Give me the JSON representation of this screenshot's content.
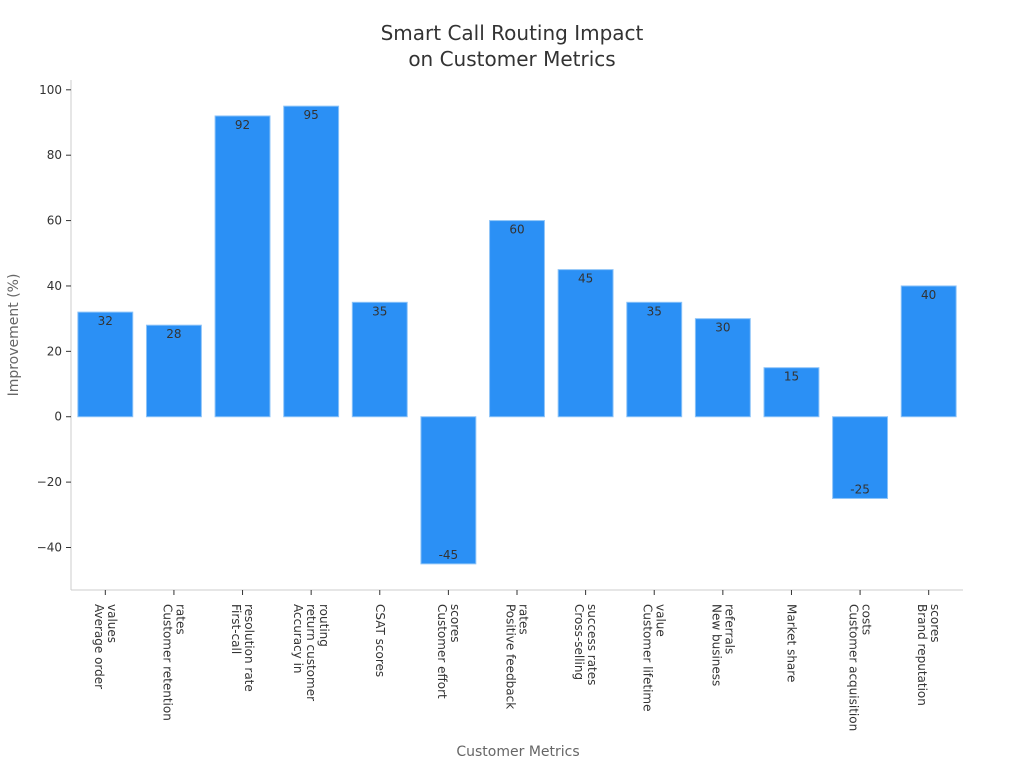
{
  "chart_data": {
    "type": "bar",
    "title": [
      "Smart Call Routing Impact",
      "on Customer Metrics"
    ],
    "xlabel": "Customer Metrics",
    "ylabel": "Improvement (%)",
    "ylim": [
      -53,
      103
    ],
    "yticks": [
      -40,
      -20,
      0,
      20,
      40,
      60,
      80,
      100
    ],
    "ytick_labels": [
      "−40",
      "−20",
      "0",
      "20",
      "40",
      "60",
      "80",
      "100"
    ],
    "grid": false,
    "bar_color": "#2b90f5",
    "bar_edge_color": "#8cc3f8",
    "categories": [
      [
        "Average order",
        "values"
      ],
      [
        "Customer retention",
        "rates"
      ],
      [
        "First-call",
        "resolution rate"
      ],
      [
        "Accuracy in",
        "return customer",
        "routing"
      ],
      [
        "CSAT scores"
      ],
      [
        "Customer effort",
        "scores"
      ],
      [
        "Positive feedback",
        "rates"
      ],
      [
        "Cross-selling",
        "success rates"
      ],
      [
        "Customer lifetime",
        "value"
      ],
      [
        "New business",
        "referrals"
      ],
      [
        "Market share"
      ],
      [
        "Customer acquisition",
        "costs"
      ],
      [
        "Brand reputation",
        "scores"
      ]
    ],
    "values": [
      32,
      28,
      92,
      95,
      35,
      -45,
      60,
      45,
      35,
      30,
      15,
      -25,
      40
    ],
    "value_labels": [
      "32",
      "28",
      "92",
      "95",
      "35",
      "-45",
      "60",
      "45",
      "35",
      "30",
      "15",
      "-25",
      "40"
    ]
  }
}
